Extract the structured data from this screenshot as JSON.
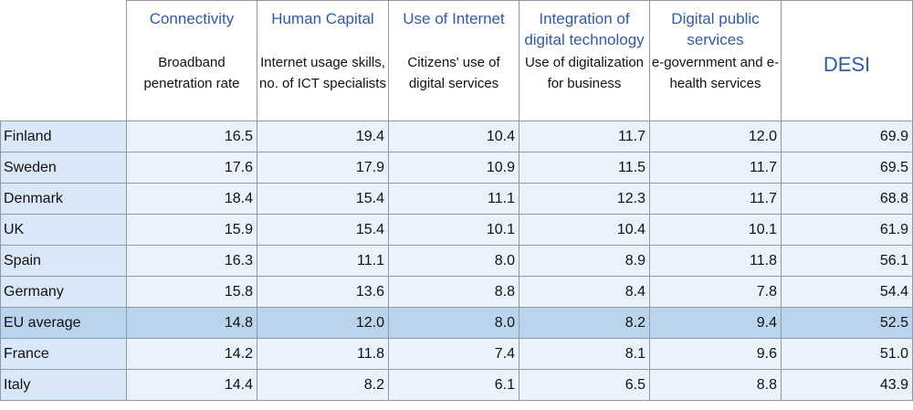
{
  "headers": [
    {
      "title": "Connectivity",
      "subtitle": "Broadband penetration rate"
    },
    {
      "title": "Human Capital",
      "subtitle": "Internet usage skills, no. of ICT specialists"
    },
    {
      "title": "Use of Internet",
      "subtitle": "Citizens' use of digital services"
    },
    {
      "title": "Integration of digital technology",
      "subtitle": "Use of digitalization for business"
    },
    {
      "title": "Digital public services",
      "subtitle": "e-government and e-health services"
    },
    {
      "title": "DESI",
      "subtitle": ""
    }
  ],
  "rows": [
    {
      "country": "Finland",
      "values": [
        "16.5",
        "19.4",
        "10.4",
        "11.7",
        "12.0",
        "69.9"
      ]
    },
    {
      "country": "Sweden",
      "values": [
        "17.6",
        "17.9",
        "10.9",
        "11.5",
        "11.7",
        "69.5"
      ]
    },
    {
      "country": "Denmark",
      "values": [
        "18.4",
        "15.4",
        "11.1",
        "12.3",
        "11.7",
        "68.8"
      ]
    },
    {
      "country": "UK",
      "values": [
        "15.9",
        "15.4",
        "10.1",
        "10.4",
        "10.1",
        "61.9"
      ]
    },
    {
      "country": "Spain",
      "values": [
        "16.3",
        "11.1",
        "8.0",
        "8.9",
        "11.8",
        "56.1"
      ]
    },
    {
      "country": "Germany",
      "values": [
        "15.8",
        "13.6",
        "8.8",
        "8.4",
        "7.8",
        "54.4"
      ]
    },
    {
      "country": "EU average",
      "values": [
        "14.8",
        "12.0",
        "8.0",
        "8.2",
        "9.4",
        "52.5"
      ]
    },
    {
      "country": "France",
      "values": [
        "14.2",
        "11.8",
        "7.4",
        "8.1",
        "9.6",
        "51.0"
      ]
    },
    {
      "country": "Italy",
      "values": [
        "14.4",
        "8.2",
        "6.1",
        "6.5",
        "8.8",
        "43.9"
      ]
    }
  ],
  "colors": {
    "header_text": "#2f5aa8",
    "country_bg": "#d9e8f8",
    "cell_bg": "#eaf2fb",
    "highlight_bg": "#b9d4ec"
  }
}
